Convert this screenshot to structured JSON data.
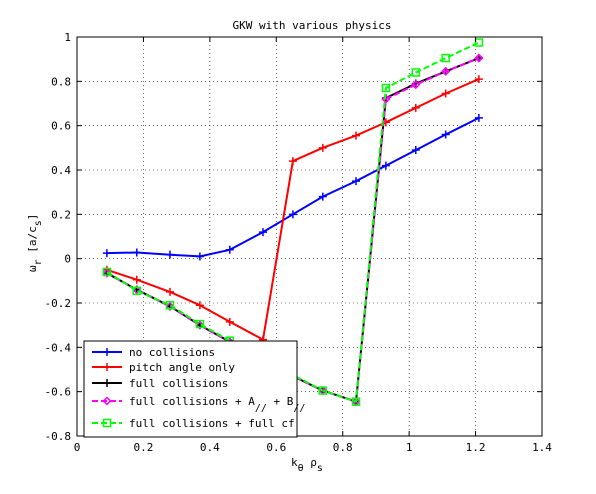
{
  "chart_data": {
    "type": "line",
    "title": "GKW with various physics",
    "xlabel": {
      "main": "k",
      "sub1": "θ",
      "mid": " ρ",
      "sub2": "s"
    },
    "ylabel": {
      "main": "ω",
      "sub1": "r",
      "mid": "  [a/c",
      "sub2": "s",
      "end": "]"
    },
    "xlim": [
      0,
      1.4
    ],
    "ylim": [
      -0.8,
      1.0
    ],
    "xticks": [
      0,
      0.2,
      0.4,
      0.6,
      0.8,
      1.0,
      1.2,
      1.4
    ],
    "xtick_labels": [
      "0",
      "0.2",
      "0.4",
      "0.6",
      "0.8",
      "1",
      "1.2",
      "1.4"
    ],
    "yticks": [
      -0.8,
      -0.6,
      -0.4,
      -0.2,
      0,
      0.2,
      0.4,
      0.6,
      0.8,
      1.0
    ],
    "ytick_labels": [
      "-0.8",
      "-0.6",
      "-0.4",
      "-0.2",
      "0",
      "0.2",
      "0.4",
      "0.6",
      "0.8",
      "1"
    ],
    "grid": true,
    "legend_position": "bottom-left",
    "series": [
      {
        "name": "no collisions",
        "color": "#0000ff",
        "marker": "plus",
        "dash": "solid",
        "x": [
          0.09,
          0.18,
          0.28,
          0.37,
          0.46,
          0.56,
          0.65,
          0.74,
          0.84,
          0.93,
          1.02,
          1.11,
          1.21
        ],
        "y": [
          0.025,
          0.028,
          0.018,
          0.01,
          0.04,
          0.12,
          0.2,
          0.28,
          0.35,
          0.42,
          0.49,
          0.56,
          0.635
        ]
      },
      {
        "name": "pitch angle only",
        "color": "#ff0000",
        "marker": "plus",
        "dash": "solid",
        "x": [
          0.09,
          0.18,
          0.28,
          0.37,
          0.46,
          0.56,
          0.65,
          0.74,
          0.84,
          0.93,
          1.02,
          1.11,
          1.21
        ],
        "y": [
          -0.05,
          -0.095,
          -0.15,
          -0.21,
          -0.285,
          -0.365,
          0.44,
          0.5,
          0.555,
          0.615,
          0.68,
          0.745,
          0.81
        ]
      },
      {
        "name": "full collisions",
        "color": "#000000",
        "marker": "plus",
        "dash": "solid",
        "x": [
          0.09,
          0.18,
          0.28,
          0.37,
          0.46,
          0.56,
          0.65,
          0.74,
          0.84,
          0.93,
          1.02,
          1.11,
          1.21
        ],
        "y": [
          -0.065,
          -0.14,
          -0.215,
          -0.3,
          -0.375,
          -0.455,
          -0.53,
          -0.595,
          -0.645,
          0.725,
          0.79,
          0.845,
          0.905
        ]
      },
      {
        "name": "full collisions + A// + B//",
        "label_parts": [
          "full collisions + A",
          "//",
          " + B",
          "//"
        ],
        "color": "#ff00ff",
        "marker": "diamond",
        "dash": "dashed",
        "x": [
          0.09,
          0.18,
          0.28,
          0.37,
          0.46,
          0.56,
          0.65,
          0.74,
          0.84,
          0.93,
          1.02,
          1.11,
          1.21
        ],
        "y": [
          -0.065,
          -0.14,
          -0.215,
          -0.3,
          -0.375,
          -0.455,
          -0.53,
          -0.595,
          -0.645,
          0.72,
          0.785,
          0.845,
          0.905
        ]
      },
      {
        "name": "full collisions + full cf",
        "color": "#00ff00",
        "marker": "square",
        "dash": "dashed",
        "x": [
          0.09,
          0.18,
          0.28,
          0.37,
          0.46,
          0.56,
          0.65,
          0.74,
          0.84,
          0.93,
          1.02,
          1.11,
          1.21
        ],
        "y": [
          -0.06,
          -0.145,
          -0.21,
          -0.295,
          -0.37,
          -0.45,
          -0.525,
          -0.595,
          -0.645,
          0.77,
          0.84,
          0.905,
          0.975
        ]
      }
    ]
  }
}
